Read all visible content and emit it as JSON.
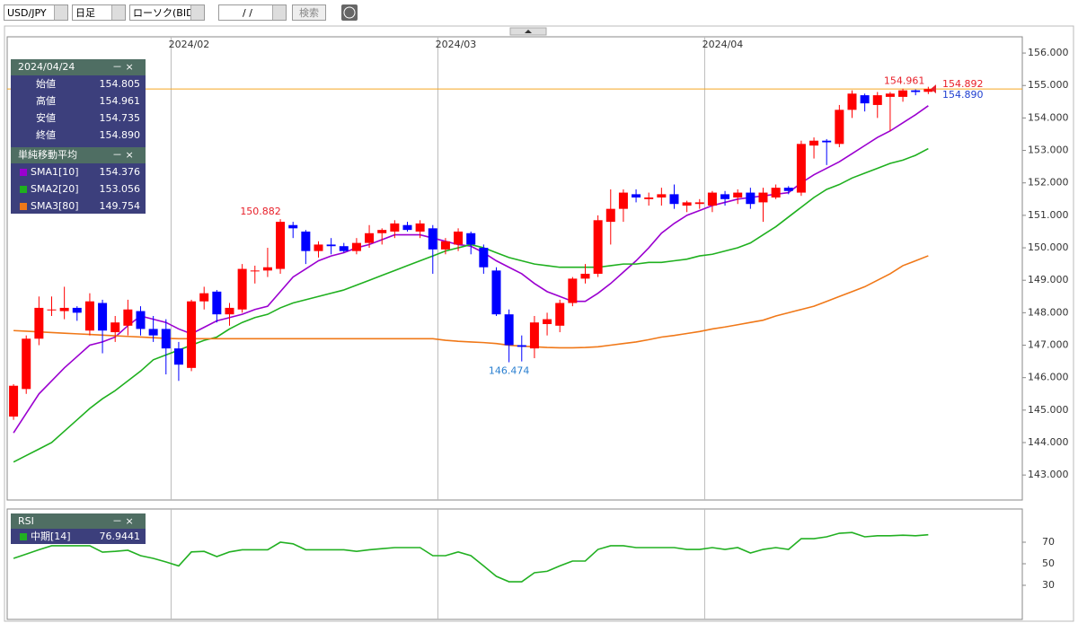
{
  "toolbar": {
    "pair": "USD/JPY",
    "period": "日足",
    "chart_kind": "ローソク(BID)",
    "date": "/ /",
    "search": "検索"
  },
  "info_panel": {
    "date": "2024/04/24",
    "rows": [
      {
        "label": "始値",
        "value": "154.805"
      },
      {
        "label": "高値",
        "value": "154.961"
      },
      {
        "label": "安値",
        "value": "154.735"
      },
      {
        "label": "終値",
        "value": "154.890"
      }
    ],
    "sma_title": "単純移動平均"
  },
  "chart_data": [
    {
      "type": "candlestick",
      "up_color": "#ff0000",
      "down_color": "#0000ff",
      "xlim": [
        -0.5,
        79.4
      ],
      "ylim": [
        142.23,
        156.5
      ],
      "xticks": [
        {
          "value": 12.4,
          "label": "2024/02"
        },
        {
          "value": 33.4,
          "label": "2024/03"
        },
        {
          "value": 54.4,
          "label": "2024/04"
        }
      ],
      "yticks": [
        {
          "value": 143,
          "label": "143.000"
        },
        {
          "value": 144,
          "label": "144.000"
        },
        {
          "value": 145,
          "label": "145.000"
        },
        {
          "value": 146,
          "label": "146.000"
        },
        {
          "value": 147,
          "label": "147.000"
        },
        {
          "value": 148,
          "label": "148.000"
        },
        {
          "value": 149,
          "label": "149.000"
        },
        {
          "value": 150,
          "label": "150.000"
        },
        {
          "value": 151,
          "label": "151.000"
        },
        {
          "value": 152,
          "label": "152.000"
        },
        {
          "value": 153,
          "label": "153.000"
        },
        {
          "value": 154,
          "label": "154.000"
        },
        {
          "value": 155,
          "label": "155.000"
        },
        {
          "value": 156,
          "label": "156.000"
        }
      ],
      "open": [
        144.8,
        145.65,
        147.2,
        148.1,
        148.05,
        148.15,
        147.45,
        148.3,
        147.4,
        147.6,
        148.05,
        147.5,
        147.5,
        146.9,
        146.3,
        148.35,
        148.65,
        147.95,
        148.1,
        149.3,
        149.3,
        149.35,
        150.7,
        150.5,
        149.9,
        150.1,
        150.05,
        149.9,
        150.15,
        150.45,
        150.5,
        150.7,
        150.5,
        150.6,
        149.95,
        150.1,
        150.45,
        150.0,
        149.3,
        147.95,
        147.0,
        146.9,
        147.65,
        147.6,
        148.3,
        149.05,
        149.2,
        150.8,
        151.2,
        151.65,
        151.5,
        151.55,
        151.65,
        151.3,
        151.35,
        151.3,
        151.65,
        151.55,
        151.7,
        151.4,
        151.55,
        151.85,
        151.7,
        153.15,
        153.3,
        153.2,
        154.25,
        154.7,
        154.4,
        154.65,
        154.65,
        154.85,
        154.805
      ],
      "high": [
        145.8,
        147.3,
        148.5,
        148.5,
        148.8,
        148.2,
        148.6,
        148.4,
        147.9,
        148.4,
        148.2,
        147.9,
        147.8,
        147.1,
        148.4,
        148.8,
        148.7,
        148.3,
        149.5,
        149.45,
        150.0,
        150.882,
        150.8,
        150.55,
        150.2,
        150.3,
        150.15,
        150.3,
        150.7,
        150.6,
        150.85,
        150.8,
        150.85,
        150.7,
        150.3,
        150.6,
        150.5,
        150.1,
        149.4,
        148.1,
        147.3,
        147.9,
        148.0,
        148.4,
        149.1,
        149.5,
        151.0,
        151.8,
        151.8,
        151.8,
        151.7,
        151.85,
        151.95,
        151.45,
        151.5,
        151.75,
        151.75,
        151.8,
        151.85,
        151.85,
        151.95,
        151.9,
        153.3,
        153.4,
        153.35,
        154.4,
        154.85,
        154.75,
        154.8,
        154.8,
        154.9,
        154.88,
        154.961
      ],
      "low": [
        144.7,
        145.5,
        147.0,
        147.9,
        147.8,
        147.75,
        147.3,
        146.75,
        147.1,
        147.3,
        147.3,
        147.1,
        146.1,
        145.9,
        146.2,
        148.1,
        147.7,
        147.6,
        148.0,
        148.9,
        149.1,
        149.2,
        150.3,
        149.5,
        149.7,
        149.8,
        149.85,
        149.8,
        150.0,
        150.1,
        150.3,
        150.5,
        150.3,
        149.2,
        149.8,
        149.9,
        149.8,
        149.2,
        147.9,
        146.474,
        146.5,
        146.6,
        147.3,
        147.4,
        148.2,
        148.9,
        149.1,
        150.1,
        150.8,
        151.4,
        151.3,
        151.3,
        151.2,
        151.1,
        151.2,
        151.1,
        151.3,
        151.35,
        151.2,
        150.8,
        151.5,
        151.65,
        151.6,
        152.75,
        152.55,
        153.1,
        154.0,
        154.2,
        154.0,
        153.6,
        154.5,
        154.7,
        154.735
      ],
      "close": [
        145.75,
        147.2,
        148.15,
        148.1,
        148.15,
        148.0,
        148.35,
        147.45,
        147.7,
        148.1,
        147.5,
        147.3,
        146.9,
        146.4,
        148.35,
        148.6,
        147.95,
        148.15,
        149.35,
        149.3,
        149.4,
        150.8,
        150.6,
        149.9,
        150.1,
        150.05,
        149.9,
        150.15,
        150.45,
        150.55,
        150.75,
        150.55,
        150.75,
        149.95,
        150.2,
        150.5,
        150.1,
        149.4,
        147.95,
        147.0,
        146.95,
        147.7,
        147.8,
        148.3,
        149.05,
        149.2,
        150.85,
        151.2,
        151.7,
        151.55,
        151.55,
        151.65,
        151.35,
        151.4,
        151.4,
        151.7,
        151.5,
        151.7,
        151.35,
        151.7,
        151.85,
        151.75,
        153.2,
        153.3,
        153.25,
        154.25,
        154.75,
        154.45,
        154.7,
        154.75,
        154.85,
        154.8,
        154.89
      ],
      "series": [
        {
          "name": "SMA1[10]",
          "color": "#9b00d0",
          "current_label": "154.376",
          "values": [
            144.3,
            144.9,
            145.5,
            145.9,
            146.3,
            146.65,
            147.0,
            147.1,
            147.25,
            147.6,
            147.9,
            147.8,
            147.7,
            147.5,
            147.35,
            147.55,
            147.75,
            147.85,
            147.95,
            148.1,
            148.2,
            148.65,
            149.1,
            149.35,
            149.6,
            149.75,
            149.85,
            150.0,
            150.1,
            150.25,
            150.4,
            150.4,
            150.4,
            150.3,
            150.2,
            150.1,
            150.05,
            149.85,
            149.6,
            149.4,
            149.2,
            148.9,
            148.65,
            148.5,
            148.35,
            148.35,
            148.6,
            148.9,
            149.25,
            149.6,
            150.0,
            150.45,
            150.75,
            151.0,
            151.15,
            151.3,
            151.4,
            151.5,
            151.55,
            151.6,
            151.65,
            151.7,
            152.0,
            152.25,
            152.45,
            152.65,
            152.9,
            153.15,
            153.4,
            153.6,
            153.85,
            154.1,
            154.376
          ]
        },
        {
          "name": "SMA2[20]",
          "color": "#1fb01f",
          "current_label": "153.056",
          "values": [
            143.4,
            143.6,
            143.8,
            144.0,
            144.35,
            144.7,
            145.05,
            145.35,
            145.6,
            145.9,
            146.2,
            146.55,
            146.7,
            146.85,
            147.0,
            147.15,
            147.25,
            147.5,
            147.7,
            147.85,
            147.95,
            148.15,
            148.3,
            148.4,
            148.5,
            148.6,
            148.7,
            148.85,
            149.0,
            149.15,
            149.3,
            149.45,
            149.6,
            149.75,
            149.9,
            150.0,
            150.1,
            150.0,
            149.85,
            149.7,
            149.6,
            149.5,
            149.45,
            149.4,
            149.4,
            149.4,
            149.4,
            149.45,
            149.5,
            149.5,
            149.55,
            149.55,
            149.6,
            149.65,
            149.75,
            149.8,
            149.9,
            150.0,
            150.15,
            150.4,
            150.65,
            150.95,
            151.25,
            151.55,
            151.8,
            151.95,
            152.15,
            152.3,
            152.45,
            152.6,
            152.7,
            152.85,
            153.056
          ]
        },
        {
          "name": "SMA3[80]",
          "color": "#f07818",
          "current_label": "149.754",
          "values": [
            147.45,
            147.43,
            147.41,
            147.39,
            147.37,
            147.35,
            147.33,
            147.31,
            147.29,
            147.27,
            147.25,
            147.23,
            147.21,
            147.2,
            147.2,
            147.2,
            147.2,
            147.2,
            147.2,
            147.2,
            147.2,
            147.2,
            147.2,
            147.2,
            147.2,
            147.2,
            147.2,
            147.2,
            147.2,
            147.2,
            147.2,
            147.2,
            147.2,
            147.2,
            147.15,
            147.12,
            147.1,
            147.08,
            147.05,
            147.0,
            146.97,
            146.95,
            146.93,
            146.92,
            146.92,
            146.93,
            146.95,
            147.0,
            147.05,
            147.1,
            147.17,
            147.25,
            147.3,
            147.36,
            147.42,
            147.5,
            147.56,
            147.63,
            147.7,
            147.77,
            147.9,
            148.0,
            148.1,
            148.2,
            148.35,
            148.5,
            148.65,
            148.8,
            149.0,
            149.2,
            149.45,
            149.6,
            149.754
          ]
        }
      ],
      "current_price": {
        "value": 154.892,
        "label": "154.892",
        "color": "#f5a623"
      },
      "annotations": [
        {
          "text": "150.882",
          "color": "#e8202a"
        },
        {
          "text": "146.474",
          "color": "#2a7fd0"
        },
        {
          "text": "154.961",
          "color": "#e8202a"
        },
        {
          "text": "154.890",
          "color": "#2040d0"
        }
      ]
    },
    {
      "type": "line",
      "title": "RSI",
      "xlim": [
        -0.5,
        79.4
      ],
      "ylim": [
        0,
        100
      ],
      "yticks": [
        30,
        50,
        70
      ],
      "series": [
        {
          "name": "中期[14]",
          "color": "#22b022",
          "current_label": "76.9441",
          "values": [
            55,
            59,
            63,
            66.7,
            66.7,
            66.7,
            66.7,
            60.8,
            61.5,
            62.5,
            57.5,
            55,
            51.7,
            48,
            61,
            61.5,
            56.7,
            61,
            63,
            63,
            63,
            70,
            68.5,
            63,
            63,
            63,
            63,
            61.5,
            63,
            64,
            65,
            65,
            65,
            57.5,
            57.5,
            61,
            57.5,
            48,
            38.3,
            33.3,
            33.3,
            41.7,
            43,
            48,
            52.5,
            52.5,
            63.3,
            66.7,
            66.7,
            65,
            65,
            65,
            65,
            63.3,
            63.3,
            65,
            63.3,
            65,
            60,
            63.3,
            65,
            63.3,
            73.3,
            73.3,
            75,
            78.3,
            79,
            75,
            76,
            76,
            76.5,
            76,
            76.9441
          ]
        }
      ]
    }
  ]
}
